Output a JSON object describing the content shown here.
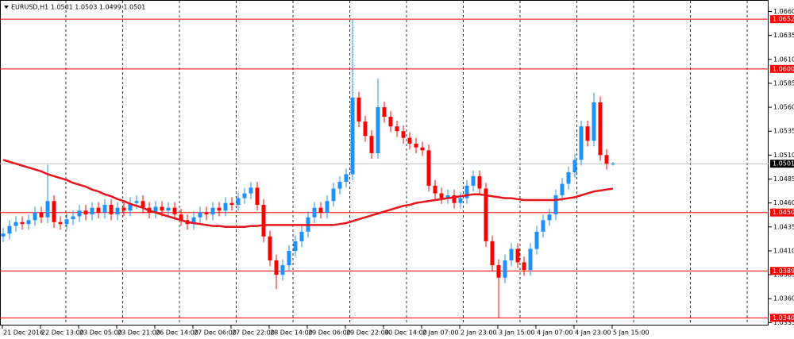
{
  "chart_data": {
    "type": "candlestick",
    "title": "EURUSD,H1  1.0501 1.0503 1.0499 1.0501",
    "categories": [
      "21 Dec 2016",
      null,
      null,
      null,
      null,
      null,
      "22 Dec 13:00",
      null,
      null,
      null,
      null,
      null,
      "23 Dec 05:00",
      null,
      null,
      null,
      null,
      null,
      "23 Dec 21:00",
      null,
      null,
      null,
      null,
      null,
      "26 Dec 14:00",
      null,
      null,
      null,
      null,
      null,
      "27 Dec 06:00",
      null,
      null,
      null,
      null,
      null,
      "27 Dec 22:00",
      null,
      null,
      null,
      null,
      null,
      "28 Dec 14:00",
      null,
      null,
      null,
      null,
      null,
      "29 Dec 06:00",
      null,
      null,
      null,
      null,
      null,
      "29 Dec 22:00",
      null,
      null,
      null,
      null,
      null,
      "30 Dec 14:00",
      null,
      null,
      null,
      null,
      null,
      "2 Jan 07:00",
      null,
      null,
      null,
      null,
      null,
      "2 Jan 23:00",
      null,
      null,
      null,
      null,
      null,
      "3 Jan 15:00",
      null,
      null,
      null,
      null,
      null,
      "4 Jan 07:00",
      null,
      null,
      null,
      null,
      null,
      "4 Jan 23:00",
      null,
      null,
      null,
      null,
      null,
      "5 Jan 15:00"
    ],
    "open": [
      1.0425,
      1.0428,
      1.0436,
      1.044,
      1.0438,
      1.0442,
      1.045,
      1.0445,
      1.0462,
      1.044,
      1.0438,
      1.0443,
      1.0446,
      1.0452,
      1.0448,
      1.0455,
      1.045,
      1.0458,
      1.0448,
      1.0455,
      1.0452,
      1.046,
      1.0462,
      1.0455,
      1.045,
      1.0456,
      1.0452,
      1.0455,
      1.0448,
      1.0442,
      1.0438,
      1.0445,
      1.045,
      1.0448,
      1.0455,
      1.0452,
      1.046,
      1.0458,
      1.0465,
      1.047,
      1.0476,
      1.0458,
      1.0425,
      1.04,
      1.0385,
      1.0395,
      1.041,
      1.042,
      1.043,
      1.0445,
      1.0455,
      1.045,
      1.0462,
      1.0475,
      1.0482,
      1.049,
      1.057,
      1.0545,
      1.053,
      1.0512,
      1.056,
      1.055,
      1.054,
      1.0535,
      1.0528,
      1.0522,
      1.0518,
      1.0515,
      1.0478,
      1.047,
      1.0465,
      1.0468,
      1.046,
      1.0465,
      1.0478,
      1.0488,
      1.0475,
      1.042,
      1.0395,
      1.0382,
      1.04,
      1.0412,
      1.0398,
      1.039,
      1.0412,
      1.043,
      1.0442,
      1.0448,
      1.0468,
      1.048,
      1.0492,
      1.0505,
      1.054,
      1.0525,
      1.0565,
      1.051,
      1.0501
    ],
    "high": [
      1.0434,
      1.0442,
      1.0446,
      1.0446,
      1.0448,
      1.0456,
      1.0456,
      1.05,
      1.0468,
      1.0446,
      1.0449,
      1.0452,
      1.0458,
      1.0458,
      1.0461,
      1.0461,
      1.0464,
      1.0464,
      1.0461,
      1.0461,
      1.0466,
      1.0468,
      1.0468,
      1.0461,
      1.0462,
      1.0462,
      1.0461,
      1.0461,
      1.0454,
      1.0448,
      1.0451,
      1.0456,
      1.0456,
      1.0461,
      1.0461,
      1.0466,
      1.0466,
      1.0471,
      1.0476,
      1.0482,
      1.0482,
      1.0464,
      1.0431,
      1.0406,
      1.0401,
      1.0416,
      1.0426,
      1.0436,
      1.0451,
      1.0461,
      1.0461,
      1.0468,
      1.0481,
      1.0488,
      1.0496,
      1.0652,
      1.0576,
      1.0551,
      1.0536,
      1.059,
      1.0566,
      1.0556,
      1.0546,
      1.0541,
      1.0534,
      1.0528,
      1.0524,
      1.0521,
      1.0484,
      1.0476,
      1.0474,
      1.0474,
      1.0471,
      1.0484,
      1.0494,
      1.0494,
      1.0481,
      1.0426,
      1.0401,
      1.0406,
      1.0418,
      1.0418,
      1.0404,
      1.0418,
      1.0436,
      1.0448,
      1.0454,
      1.0474,
      1.0486,
      1.0498,
      1.0511,
      1.0546,
      1.0546,
      1.0575,
      1.0571,
      1.0516,
      1.0503
    ],
    "low": [
      1.0419,
      1.0422,
      1.043,
      1.0432,
      1.0432,
      1.0436,
      1.0439,
      1.0439,
      1.0434,
      1.0432,
      1.0432,
      1.0437,
      1.044,
      1.0442,
      1.0442,
      1.0444,
      1.0444,
      1.0442,
      1.0442,
      1.0446,
      1.0446,
      1.0454,
      1.0449,
      1.0444,
      1.0444,
      1.0446,
      1.0446,
      1.0442,
      1.0436,
      1.0432,
      1.0432,
      1.0439,
      1.0442,
      1.0442,
      1.0446,
      1.0446,
      1.0452,
      1.0452,
      1.0459,
      1.0464,
      1.0452,
      1.0419,
      1.0394,
      1.037,
      1.0379,
      1.0389,
      1.0404,
      1.0414,
      1.0424,
      1.0439,
      1.0444,
      1.0444,
      1.0456,
      1.0469,
      1.0476,
      1.0484,
      1.0539,
      1.0524,
      1.0506,
      1.0506,
      1.0544,
      1.0534,
      1.0529,
      1.0522,
      1.0516,
      1.0512,
      1.0509,
      1.0472,
      1.0464,
      1.0459,
      1.0459,
      1.0454,
      1.0454,
      1.0459,
      1.0472,
      1.0469,
      1.0414,
      1.0389,
      1.034,
      1.0376,
      1.0394,
      1.0392,
      1.0384,
      1.0384,
      1.0406,
      1.0424,
      1.0436,
      1.0442,
      1.0462,
      1.0474,
      1.0486,
      1.0499,
      1.0519,
      1.0519,
      1.0504,
      1.0495,
      1.0499
    ],
    "close": [
      1.0428,
      1.0436,
      1.044,
      1.0438,
      1.0442,
      1.045,
      1.0445,
      1.0462,
      1.044,
      1.0438,
      1.0443,
      1.0446,
      1.0452,
      1.0448,
      1.0455,
      1.045,
      1.0458,
      1.0448,
      1.0455,
      1.0452,
      1.046,
      1.0462,
      1.0455,
      1.045,
      1.0456,
      1.0452,
      1.0455,
      1.0448,
      1.0442,
      1.0438,
      1.0445,
      1.045,
      1.0448,
      1.0455,
      1.0452,
      1.046,
      1.0458,
      1.0465,
      1.047,
      1.0476,
      1.0458,
      1.0425,
      1.04,
      1.0385,
      1.0395,
      1.041,
      1.042,
      1.043,
      1.0445,
      1.0455,
      1.045,
      1.0462,
      1.0475,
      1.0482,
      1.049,
      1.057,
      1.0545,
      1.053,
      1.0512,
      1.056,
      1.055,
      1.054,
      1.0535,
      1.0528,
      1.0522,
      1.0518,
      1.0515,
      1.0478,
      1.047,
      1.0465,
      1.0468,
      1.046,
      1.0465,
      1.0478,
      1.0488,
      1.0475,
      1.042,
      1.0395,
      1.0382,
      1.04,
      1.0412,
      1.0398,
      1.039,
      1.0412,
      1.043,
      1.0442,
      1.0448,
      1.0468,
      1.048,
      1.0492,
      1.0505,
      1.054,
      1.0525,
      1.0565,
      1.051,
      1.0501,
      1.0501
    ],
    "ma_values": [
      1.0505,
      1.0503,
      1.0501,
      1.0499,
      1.0497,
      1.0495,
      1.0493,
      1.049,
      1.0488,
      1.0486,
      1.0484,
      1.0481,
      1.0479,
      1.0477,
      1.0474,
      1.0472,
      1.0469,
      1.0467,
      1.0464,
      1.0462,
      1.0459,
      1.0457,
      1.0455,
      1.0452,
      1.045,
      1.0448,
      1.0446,
      1.0444,
      1.0442,
      1.044,
      1.0439,
      1.0438,
      1.0437,
      1.0436,
      1.0436,
      1.0435,
      1.0435,
      1.0435,
      1.0435,
      1.0436,
      1.0436,
      1.0437,
      1.0437,
      1.0437,
      1.0437,
      1.0437,
      1.0437,
      1.0437,
      1.0437,
      1.0437,
      1.0437,
      1.0437,
      1.0437,
      1.0438,
      1.0439,
      1.0441,
      1.0443,
      1.0445,
      1.0447,
      1.0449,
      1.0451,
      1.0453,
      1.0455,
      1.0457,
      1.0458,
      1.046,
      1.0461,
      1.0462,
      1.0463,
      1.0464,
      1.0465,
      1.0466,
      1.0467,
      1.0468,
      1.0469,
      1.0469,
      1.0468,
      1.0467,
      1.0466,
      1.0465,
      1.0465,
      1.0464,
      1.0463,
      1.0463,
      1.0463,
      1.0463,
      1.0463,
      1.0463,
      1.0464,
      1.0465,
      1.0466,
      1.0468,
      1.047,
      1.0472,
      1.0473,
      1.0474,
      1.0475
    ],
    "up_color": "#1e90ff",
    "down_color": "#ff0000",
    "ma_color": "#e8141b",
    "level_color": "#ff0000",
    "ylim": [
      1.0332,
      1.0672
    ],
    "yticks": [
      {
        "value": 1.066,
        "label": "1.0660"
      },
      {
        "value": 1.0635,
        "label": "1.0635"
      },
      {
        "value": 1.061,
        "label": "1.0610"
      },
      {
        "value": 1.0585,
        "label": "1.0585"
      },
      {
        "value": 1.056,
        "label": "1.0560"
      },
      {
        "value": 1.0535,
        "label": "1.0535"
      },
      {
        "value": 1.051,
        "label": "1.0510"
      },
      {
        "value": 1.0485,
        "label": "1.0485"
      },
      {
        "value": 1.046,
        "label": "1.0460"
      },
      {
        "value": 1.0435,
        "label": "1.0435"
      },
      {
        "value": 1.041,
        "label": "1.0410"
      },
      {
        "value": 1.0385,
        "label": "1.0385"
      },
      {
        "value": 1.036,
        "label": "1.0360"
      },
      {
        "value": 1.0335,
        "label": "1.0335"
      }
    ],
    "levels": [
      {
        "value": 1.0652,
        "label": "1.0652"
      },
      {
        "value": 1.06,
        "label": "1.0600"
      },
      {
        "value": 1.045,
        "label": "1.0450"
      },
      {
        "value": 1.0389,
        "label": "1.0389"
      },
      {
        "value": 1.034,
        "label": "1.0340"
      }
    ],
    "current_price": {
      "value": 1.0501,
      "label": "1.0501"
    }
  }
}
